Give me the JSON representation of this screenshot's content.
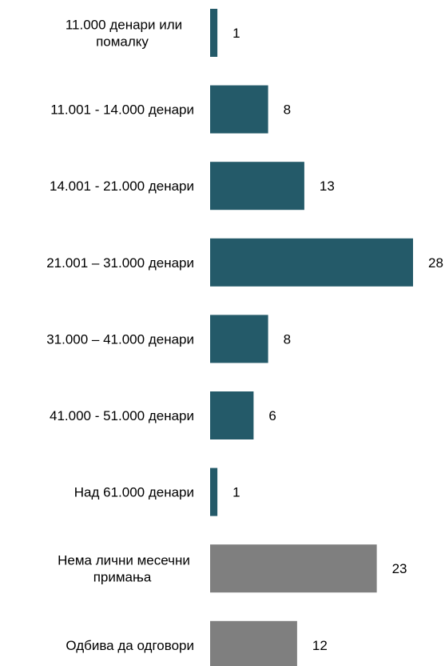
{
  "chart_data": {
    "type": "bar",
    "orientation": "horizontal",
    "categories": [
      [
        "11.000 денари или",
        "помалку"
      ],
      [
        "11.001 - 14.000 денари"
      ],
      [
        "14.001 - 21.000 денари"
      ],
      [
        "21.001 – 31.000 денари"
      ],
      [
        "31.000 – 41.000 денари"
      ],
      [
        "41.000 - 51.000 денари"
      ],
      [
        "Над 61.000 денари"
      ],
      [
        "Нема лични месечни",
        "примања"
      ],
      [
        "Одбива да одговори"
      ]
    ],
    "values": [
      1,
      8,
      13,
      28,
      8,
      6,
      1,
      23,
      12
    ],
    "value_labels": [
      "1",
      "8",
      "13",
      "28",
      "8",
      "6",
      "1",
      "23",
      "12"
    ],
    "bar_colors": [
      "#245a69",
      "#245a69",
      "#245a69",
      "#245a69",
      "#245a69",
      "#245a69",
      "#245a69",
      "#7f7f7f",
      "#7f7f7f"
    ],
    "xlim": [
      0,
      28
    ],
    "title": "",
    "xlabel": "",
    "ylabel": "",
    "grid": false,
    "legend": "none"
  }
}
